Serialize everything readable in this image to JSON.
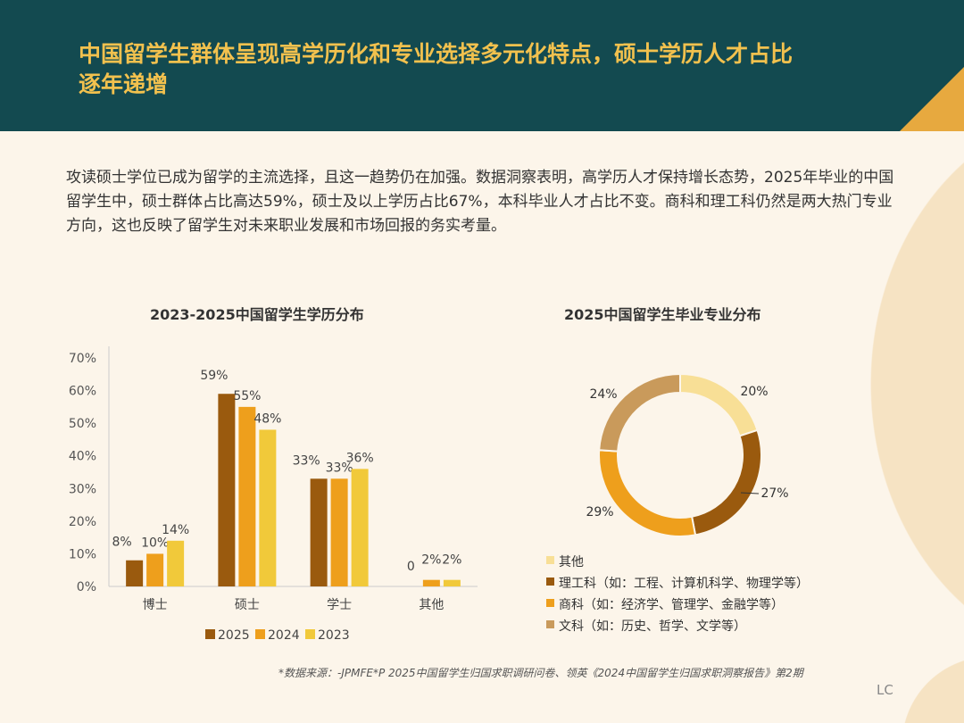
{
  "header": {
    "title": "中国留学生群体呈现高学历化和专业选择多元化特点，硕士学历人才占比逐年递增"
  },
  "intro": "攻读硕士学位已成为留学的主流选择，且这一趋势仍在加强。数据洞察表明，高学历人才保持增长态势，2025年毕业的中国留学生中，硕士群体占比高达59%，硕士及以上学历占比67%，本科毕业人才占比不变。商科和理工科仍然是两大热门专业方向，这也反映了留学生对未来职业发展和市场回报的务实考量。",
  "footnote": "*数据来源：-JPMFE*P 2025中国留学生归国求职调研问卷、领英《2024中国留学生归国求职洞察报告》第2期",
  "logo": "LC",
  "colors": {
    "header": "#134a50",
    "title": "#f2c14e",
    "c2025": "#9a5a0e",
    "c2024": "#ee9f1c",
    "c2023": "#f1c93a"
  },
  "chart_data": [
    {
      "type": "bar",
      "title": "2023-2025中国留学生学历分布",
      "categories": [
        "博士",
        "硕士",
        "学士",
        "其他"
      ],
      "yticks": [
        "0%",
        "10%",
        "20%",
        "30%",
        "40%",
        "50%",
        "60%",
        "70%"
      ],
      "ylim": [
        0,
        70
      ],
      "legend": "bottom",
      "series": [
        {
          "name": "2025",
          "values": [
            8,
            59,
            33,
            0
          ],
          "color": "#9a5a0e"
        },
        {
          "name": "2024",
          "values": [
            10,
            55,
            33,
            2
          ],
          "color": "#ee9f1c"
        },
        {
          "name": "2023",
          "values": [
            14,
            48,
            36,
            2
          ],
          "color": "#f1c93a"
        }
      ]
    },
    {
      "type": "pie",
      "title": "2025中国留学生毕业专业分布",
      "legend": "bottom",
      "slices": [
        {
          "name": "其他",
          "value": 20,
          "color": "#f8df96"
        },
        {
          "name": "理工科（如：工程、计算机科学、物理学等）",
          "value": 27,
          "color": "#9a5a0e"
        },
        {
          "name": "商科（如：经济学、管理学、金融学等）",
          "value": 29,
          "color": "#ee9f1c"
        },
        {
          "name": "文科（如：历史、哲学、文学等）",
          "value": 24,
          "color": "#c99a5b"
        }
      ]
    }
  ]
}
